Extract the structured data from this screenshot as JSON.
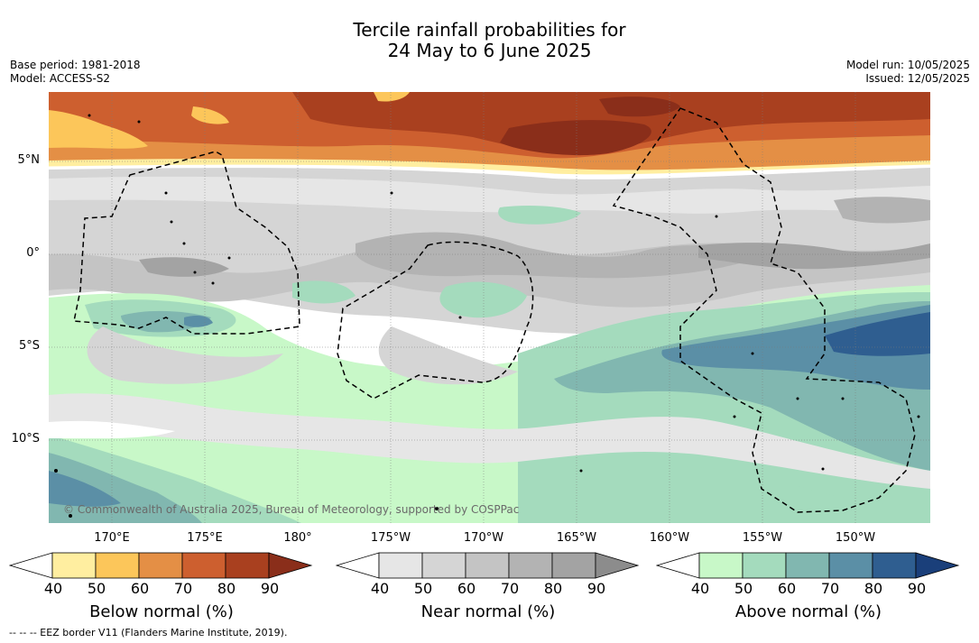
{
  "title": {
    "line1": "Tercile rainfall probabilities for",
    "line2": "24 May to 6 June 2025"
  },
  "meta_left": {
    "base_period": "Base period: 1981-2018",
    "model": "Model: ACCESS-S2"
  },
  "meta_right": {
    "model_run": "Model run: 10/05/2025",
    "issued": "Issued: 12/05/2025"
  },
  "map": {
    "lat_labels": [
      "5°N",
      "0°",
      "5°S",
      "10°S"
    ],
    "lon_labels": [
      "170°E",
      "175°E",
      "180°",
      "175°W",
      "170°W",
      "165°W",
      "160°W",
      "155°W",
      "150°W"
    ],
    "copyright": "© Commonwealth of Australia 2025, Bureau of Meteorology, supported by COSPPac"
  },
  "colorbars": [
    {
      "title": "Below normal (%)",
      "ticks": [
        "40",
        "50",
        "60",
        "70",
        "80",
        "90"
      ],
      "colors": [
        "#ffeea0",
        "#fcc65a",
        "#e48f45",
        "#cd5f2f",
        "#a9401f",
        "#8a2e1a"
      ]
    },
    {
      "title": "Near normal (%)",
      "ticks": [
        "40",
        "50",
        "60",
        "70",
        "80",
        "90"
      ],
      "colors": [
        "#e6e6e6",
        "#d5d5d5",
        "#c4c4c4",
        "#b3b3b3",
        "#a3a3a3",
        "#8c8c8c"
      ]
    },
    {
      "title": "Above normal (%)",
      "ticks": [
        "40",
        "50",
        "60",
        "70",
        "80",
        "90"
      ],
      "colors": [
        "#c8f8c8",
        "#a4dbbd",
        "#81b7b0",
        "#5b8fa6",
        "#2f5e90",
        "#1a3f7a"
      ]
    }
  ],
  "footnote": "--  --  -- EEZ border V11 (Flanders Marine Institute, 2019).",
  "palette": {
    "below_90": "#8a2e1a",
    "near_70": "#b3b3b3",
    "above_80": "#2f5e90"
  }
}
